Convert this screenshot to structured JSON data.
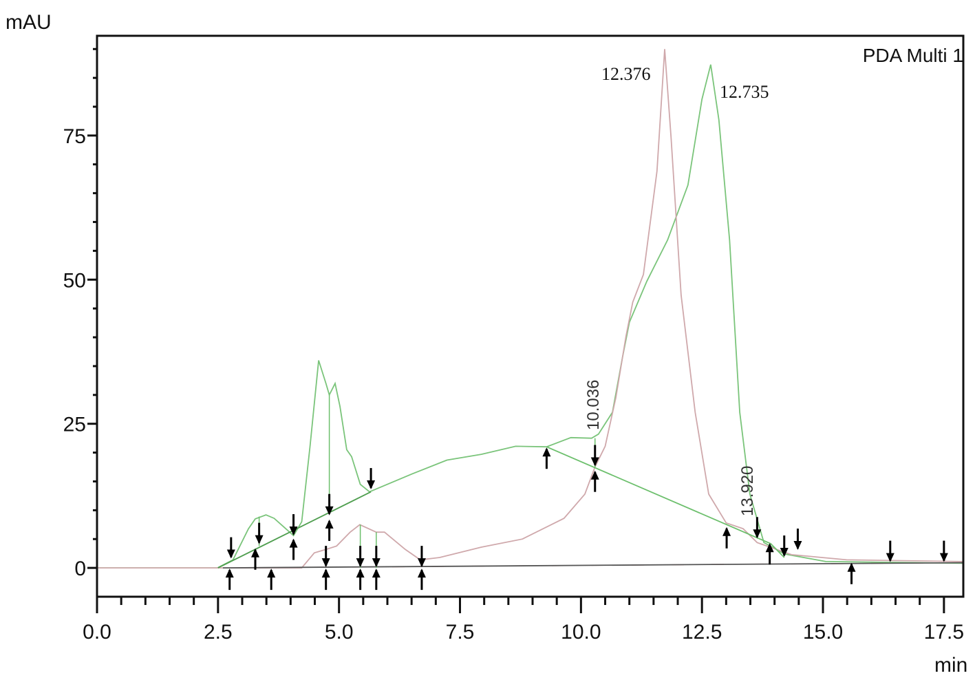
{
  "chart_data": {
    "type": "line",
    "title": "",
    "legend_text": "PDA Multi 1",
    "xlabel": "min",
    "ylabel": "mAU",
    "xlim": [
      0,
      17.9
    ],
    "ylim": [
      -5,
      92.3
    ],
    "x_major_ticks": [
      0.0,
      2.5,
      5.0,
      7.5,
      10.0,
      12.5,
      15.0,
      17.5
    ],
    "x_tick_labels": [
      "0.0",
      "2.5",
      "5.0",
      "7.5",
      "10.0",
      "12.5",
      "15.0",
      "17.5"
    ],
    "x_minor_step": 0.5,
    "y_major_ticks": [
      0,
      25,
      50,
      75
    ],
    "y_tick_labels": [
      "0",
      "25",
      "50",
      "75"
    ],
    "y_minor_step": 5,
    "grid": false,
    "colors": {
      "green": "#6cbf6c",
      "pink": "#c9a0a4",
      "baseline": "#555555",
      "frame": "#111111",
      "arrow": "#000000",
      "red_dash": "#e06060"
    },
    "series": [
      {
        "color": "#7ac47a",
        "points": [
          [
            0,
            0
          ],
          [
            2.49,
            0
          ],
          [
            2.81,
            1.4
          ],
          [
            3.13,
            6.8
          ],
          [
            3.27,
            8.5
          ],
          [
            3.49,
            9.2
          ],
          [
            3.66,
            8.6
          ],
          [
            4.06,
            5.6
          ],
          [
            4.23,
            8
          ],
          [
            4.4,
            21
          ],
          [
            4.58,
            36
          ],
          [
            4.73,
            32
          ],
          [
            4.8,
            30
          ],
          [
            4.92,
            32
          ],
          [
            5.02,
            28
          ],
          [
            5.16,
            20.5
          ],
          [
            5.26,
            19.3
          ],
          [
            5.44,
            14.5
          ],
          [
            5.63,
            13.2
          ],
          [
            6.51,
            16.3
          ],
          [
            7.23,
            18.7
          ],
          [
            7.94,
            19.7
          ],
          [
            8.65,
            21.1
          ],
          [
            9.29,
            21
          ],
          [
            9.79,
            22.6
          ],
          [
            10.22,
            22.5
          ],
          [
            10.36,
            23.2
          ],
          [
            10.65,
            27
          ],
          [
            10.86,
            36.6
          ],
          [
            11.0,
            42.6
          ],
          [
            11.36,
            49.7
          ],
          [
            11.79,
            56.9
          ],
          [
            12.21,
            66.4
          ],
          [
            12.5,
            81.3
          ],
          [
            12.68,
            87.3
          ],
          [
            12.85,
            77.7
          ],
          [
            13.07,
            56.9
          ],
          [
            13.28,
            27
          ],
          [
            13.49,
            12.8
          ],
          [
            13.78,
            4.4
          ],
          [
            14.21,
            2.4
          ],
          [
            15.06,
            1.1
          ],
          [
            17.91,
            0.8
          ]
        ]
      },
      {
        "color": "#cfa8ab",
        "points": [
          [
            0,
            0
          ],
          [
            4.23,
            0
          ],
          [
            4.49,
            2.6
          ],
          [
            4.73,
            3.2
          ],
          [
            4.95,
            3.8
          ],
          [
            5.23,
            6.2
          ],
          [
            5.43,
            7.5
          ],
          [
            5.77,
            6.2
          ],
          [
            5.94,
            6.2
          ],
          [
            6.37,
            3.2
          ],
          [
            6.68,
            1.4
          ],
          [
            7.08,
            1.8
          ],
          [
            7.94,
            3.6
          ],
          [
            8.79,
            5
          ],
          [
            9.65,
            8.6
          ],
          [
            10.08,
            12.8
          ],
          [
            10.29,
            17.5
          ],
          [
            10.5,
            21.1
          ],
          [
            10.72,
            29.5
          ],
          [
            10.93,
            40.2
          ],
          [
            11.07,
            46.1
          ],
          [
            11.29,
            50.9
          ],
          [
            11.57,
            68.8
          ],
          [
            11.73,
            90
          ],
          [
            11.86,
            74.8
          ],
          [
            12.07,
            47.3
          ],
          [
            12.36,
            27
          ],
          [
            12.64,
            12.8
          ],
          [
            13.0,
            7.8
          ],
          [
            13.35,
            6.8
          ],
          [
            13.64,
            4.4
          ],
          [
            14.35,
            2.3
          ],
          [
            15.49,
            1.4
          ],
          [
            17.91,
            1.1
          ]
        ]
      }
    ],
    "integration_baselines": [
      {
        "color": "#4f9e4f",
        "points": [
          [
            2.5,
            0
          ],
          [
            5.66,
            13.2
          ]
        ]
      },
      {
        "color": "#6cbf6c",
        "points": [
          [
            9.29,
            21
          ],
          [
            13.92,
            4.2
          ],
          [
            14.2,
            1.8
          ]
        ]
      },
      {
        "color": "#555555",
        "points": [
          [
            2.6,
            0
          ],
          [
            17.91,
            0.9
          ]
        ]
      }
    ],
    "drop_lines": [
      {
        "x": 3.35,
        "from": 8.9,
        "to": 3.8
      },
      {
        "x": 4.8,
        "from": 30,
        "to": 10
      },
      {
        "x": 5.44,
        "from": 7.5,
        "to": 0
      },
      {
        "x": 5.77,
        "from": 6.2,
        "to": 0
      },
      {
        "x": 10.29,
        "from": 22.5,
        "to": 17.5
      }
    ],
    "arrows_up": [
      [
        2.74,
        0
      ],
      [
        3.27,
        3.5
      ],
      [
        3.6,
        0
      ],
      [
        4.06,
        5.2
      ],
      [
        4.73,
        0
      ],
      [
        4.8,
        8.5
      ],
      [
        5.44,
        0
      ],
      [
        5.77,
        0
      ],
      [
        6.71,
        0
      ],
      [
        9.29,
        21
      ],
      [
        10.29,
        17
      ],
      [
        13.01,
        7.2
      ],
      [
        13.9,
        4.4
      ],
      [
        15.59,
        1
      ]
    ],
    "arrows_down": [
      [
        2.77,
        1.5
      ],
      [
        3.35,
        4
      ],
      [
        4.06,
        5.5
      ],
      [
        4.73,
        0
      ],
      [
        4.8,
        9
      ],
      [
        5.44,
        0
      ],
      [
        5.66,
        13.5
      ],
      [
        5.77,
        0
      ],
      [
        6.71,
        0
      ],
      [
        10.29,
        17.5
      ],
      [
        13.64,
        5
      ],
      [
        14.2,
        1.8
      ],
      [
        14.48,
        3
      ],
      [
        16.39,
        0.9
      ],
      [
        17.5,
        0.9
      ]
    ],
    "peak_labels": [
      {
        "text": "12.376",
        "style": "serif"
      },
      {
        "text": "12.735",
        "style": "serif"
      },
      {
        "text": "10.036",
        "style": "rotated"
      },
      {
        "text": "13.920",
        "style": "rotated"
      }
    ]
  }
}
